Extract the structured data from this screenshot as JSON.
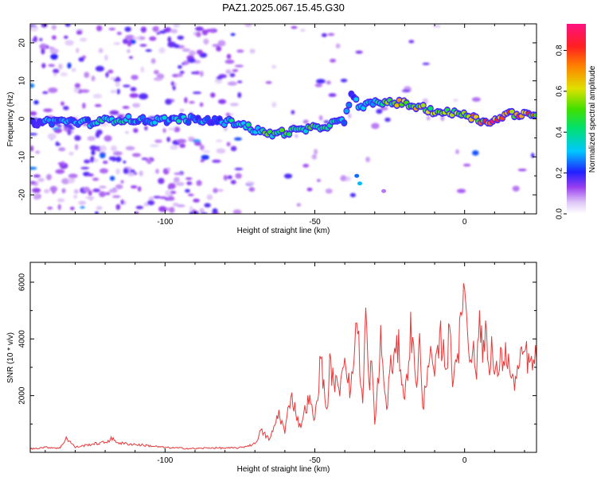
{
  "title": "PAZ1.2025.067.15.45.G30",
  "colorbar": {
    "label": "Normalized spectral amplitude",
    "ticks": [
      0.0,
      0.2,
      0.4,
      0.6,
      0.8
    ],
    "tick_labels": [
      "0.0",
      "0.2",
      "0.4",
      "0.6",
      "0.8"
    ],
    "range": [
      0,
      0.93
    ]
  },
  "chart_data": [
    {
      "type": "heatmap",
      "xlabel": "Height of straight line (km)",
      "ylabel": "Frequency (Hz)",
      "xlim": [
        -145,
        24
      ],
      "ylim": [
        -25,
        25
      ],
      "xticks": [
        -100,
        -50,
        0
      ],
      "xtick_labels": [
        "-100",
        "-50",
        "0"
      ],
      "yticks": [
        -20,
        -10,
        0,
        10,
        20
      ],
      "ytick_labels": [
        "-20",
        "-10",
        "0",
        "10",
        "20"
      ],
      "ridge": {
        "x": [
          -145,
          -135,
          -125,
          -115,
          -105,
          -95,
          -85,
          -75,
          -70,
          -65,
          -60,
          -55,
          -50,
          -45,
          -40,
          -38,
          -35,
          -30,
          -25,
          -20,
          -15,
          -10,
          -5,
          0,
          5,
          10,
          15,
          20,
          24
        ],
        "y": [
          -1,
          -0.5,
          -1,
          0,
          -0.5,
          0,
          -0.5,
          -1,
          -3,
          -4,
          -3.5,
          -3,
          -2.5,
          -1.5,
          -0.5,
          6,
          3.5,
          4,
          4.5,
          4,
          3,
          2,
          1.5,
          1.5,
          -0.5,
          -0.5,
          1.5,
          1,
          0.5
        ],
        "amplitude": [
          0.25,
          0.3,
          0.35,
          0.45,
          0.3,
          0.35,
          0.3,
          0.4,
          0.45,
          0.5,
          0.55,
          0.5,
          0.5,
          0.4,
          0.35,
          0.3,
          0.35,
          0.45,
          0.55,
          0.7,
          0.65,
          0.7,
          0.6,
          0.75,
          0.8,
          0.85,
          0.8,
          0.9,
          0.7
        ]
      }
    },
    {
      "type": "line",
      "xlabel": "Height of straight line (km)",
      "ylabel": "SNR (10 * v/v)",
      "xlim": [
        -145,
        24
      ],
      "ylim": [
        0,
        6700
      ],
      "xticks": [
        -100,
        -50,
        0
      ],
      "xtick_labels": [
        "-100",
        "-50",
        "0"
      ],
      "yticks": [
        2000,
        4000,
        6000
      ],
      "ytick_labels": [
        "2000",
        "4000",
        "6000"
      ],
      "series": [
        {
          "color": "#e8393a",
          "x": [
            -145,
            -140,
            -135,
            -133,
            -130,
            -125,
            -120,
            -118,
            -115,
            -110,
            -105,
            -100,
            -95,
            -90,
            -85,
            -80,
            -75,
            -70,
            -68,
            -65,
            -62,
            -60,
            -58,
            -55,
            -52,
            -50,
            -48,
            -46,
            -45,
            -42,
            -40,
            -38,
            -36,
            -34,
            -33,
            -32,
            -31,
            -30,
            -28,
            -26,
            -25,
            -22,
            -20,
            -18,
            -16,
            -15,
            -14,
            -12,
            -10,
            -8,
            -6,
            -5,
            -4,
            -2,
            -1,
            0,
            1,
            2,
            3,
            4,
            5,
            6,
            7,
            8,
            9,
            10,
            12,
            14,
            16,
            18,
            20,
            22,
            24
          ],
          "y": [
            120,
            180,
            150,
            520,
            180,
            280,
            350,
            480,
            320,
            280,
            230,
            170,
            150,
            130,
            160,
            150,
            160,
            300,
            750,
            450,
            1400,
            700,
            2100,
            900,
            1900,
            1100,
            3300,
            1400,
            3000,
            2100,
            3600,
            2000,
            4800,
            1600,
            5100,
            2300,
            3200,
            900,
            3900,
            1400,
            2900,
            3700,
            1800,
            4300,
            2500,
            3900,
            1400,
            3500,
            2700,
            4000,
            3100,
            4300,
            2700,
            3800,
            4500,
            6650,
            3900,
            3200,
            4200,
            2600,
            5100,
            3200,
            4600,
            3000,
            3800,
            2600,
            3200,
            3500,
            2400,
            2900,
            3600,
            3000,
            3300
          ]
        }
      ]
    }
  ]
}
